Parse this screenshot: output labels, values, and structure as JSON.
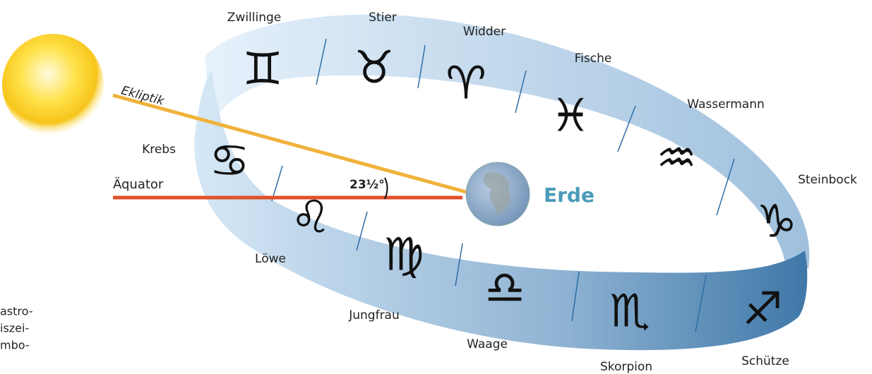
{
  "signs": [
    {
      "name": "Zwillinge",
      "symbol": "♊"
    },
    {
      "name": "Stier",
      "symbol": "♉"
    },
    {
      "name": "Widder",
      "symbol": "♈"
    },
    {
      "name": "Fische",
      "symbol": "♓"
    },
    {
      "name": "Wassermann",
      "symbol": "♒"
    },
    {
      "name": "Steinbock",
      "symbol": "♑"
    },
    {
      "name": "Schütze",
      "symbol": "♐"
    },
    {
      "name": "Skorpion",
      "symbol": "♏"
    },
    {
      "name": "Waage",
      "symbol": "♎"
    },
    {
      "name": "Jungfrau",
      "symbol": "♍"
    },
    {
      "name": "Löwe",
      "symbol": "♌"
    },
    {
      "name": "Krebs",
      "symbol": "♋"
    }
  ],
  "labels": {
    "ecliptic": "Ekliptik",
    "equator": "Äquator",
    "angle": "23½°",
    "earth": "Erde"
  },
  "side_text": [
    "astro-",
    "iszei-",
    "mbo-"
  ]
}
